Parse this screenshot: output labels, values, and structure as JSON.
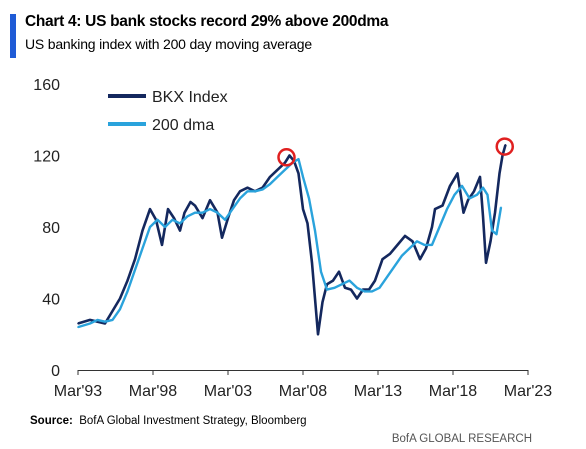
{
  "header": {
    "title": "Chart 4: US bank stocks record 29% above 200dma",
    "subtitle": "US banking index with 200 day moving average"
  },
  "footer": {
    "source_label": "Source:",
    "source_text": "BofA Global Investment Strategy, Bloomberg",
    "brand": "BofA GLOBAL RESEARCH"
  },
  "colors": {
    "accent": "#1f5bd6",
    "bkx": "#14285e",
    "dma": "#2aa3dc",
    "highlight": "#e02020"
  },
  "chart_data": {
    "type": "line",
    "title": "Chart 4: US bank stocks record 29% above 200dma",
    "subtitle": "US banking index with 200 day moving average",
    "xlabel": "",
    "ylabel": "",
    "ylim": [
      0,
      160
    ],
    "xlim": [
      1993.2,
      2023.2
    ],
    "y_ticks": [
      0,
      40,
      80,
      120,
      160
    ],
    "x_ticks": [
      {
        "value": 1993.2,
        "label": "Mar'93"
      },
      {
        "value": 1998.2,
        "label": "Mar'98"
      },
      {
        "value": 2003.2,
        "label": "Mar'03"
      },
      {
        "value": 2008.2,
        "label": "Mar'08"
      },
      {
        "value": 2013.2,
        "label": "Mar'13"
      },
      {
        "value": 2018.2,
        "label": "Mar'18"
      },
      {
        "value": 2023.2,
        "label": "Mar'23"
      }
    ],
    "grid": false,
    "legend_position": "top-left",
    "series": [
      {
        "name": "BKX Index",
        "x": [
          1993.2,
          1994.0,
          1994.5,
          1995.0,
          1995.5,
          1996.0,
          1996.5,
          1997.0,
          1997.5,
          1998.0,
          1998.4,
          1998.8,
          1999.2,
          1999.6,
          2000.0,
          2000.3,
          2000.7,
          2001.0,
          2001.5,
          2002.0,
          2002.5,
          2002.8,
          2003.2,
          2003.6,
          2004.0,
          2004.5,
          2005.0,
          2005.5,
          2006.0,
          2006.5,
          2007.0,
          2007.3,
          2007.6,
          2007.9,
          2008.2,
          2008.5,
          2008.8,
          2009.0,
          2009.2,
          2009.5,
          2009.8,
          2010.2,
          2010.6,
          2011.0,
          2011.4,
          2011.8,
          2012.2,
          2012.6,
          2013.0,
          2013.5,
          2014.0,
          2014.5,
          2015.0,
          2015.5,
          2016.0,
          2016.4,
          2016.8,
          2017.0,
          2017.5,
          2018.0,
          2018.5,
          2018.9,
          2019.2,
          2019.6,
          2020.0,
          2020.2,
          2020.4,
          2020.7,
          2021.0,
          2021.3,
          2021.5,
          2021.7
        ],
        "values": [
          26,
          28,
          27,
          26,
          33,
          40,
          50,
          62,
          78,
          90,
          84,
          70,
          90,
          85,
          78,
          88,
          94,
          92,
          85,
          95,
          88,
          74,
          85,
          95,
          100,
          102,
          100,
          102,
          108,
          112,
          116,
          120,
          117,
          110,
          90,
          82,
          60,
          40,
          20,
          38,
          48,
          50,
          55,
          46,
          45,
          40,
          45,
          45,
          50,
          62,
          65,
          70,
          75,
          72,
          62,
          68,
          80,
          90,
          92,
          103,
          110,
          88,
          95,
          100,
          108,
          86,
          60,
          72,
          88,
          110,
          120,
          126
        ]
      },
      {
        "name": "200 dma",
        "x": [
          1993.2,
          1994.0,
          1994.5,
          1995.0,
          1995.5,
          1996.0,
          1996.5,
          1997.0,
          1997.5,
          1998.0,
          1998.5,
          1999.0,
          1999.5,
          2000.0,
          2000.5,
          2001.0,
          2001.5,
          2002.0,
          2002.5,
          2003.0,
          2003.5,
          2004.0,
          2004.5,
          2005.0,
          2005.5,
          2006.0,
          2006.5,
          2007.0,
          2007.5,
          2007.9,
          2008.2,
          2008.6,
          2009.0,
          2009.4,
          2009.8,
          2010.3,
          2010.8,
          2011.3,
          2011.8,
          2012.3,
          2012.8,
          2013.3,
          2013.8,
          2014.3,
          2014.8,
          2015.3,
          2015.8,
          2016.3,
          2016.8,
          2017.3,
          2017.8,
          2018.3,
          2018.8,
          2019.3,
          2019.8,
          2020.2,
          2020.5,
          2020.8,
          2021.1,
          2021.4
        ],
        "values": [
          24,
          26,
          28,
          27,
          28,
          34,
          44,
          56,
          68,
          80,
          84,
          80,
          84,
          82,
          86,
          88,
          88,
          90,
          88,
          84,
          90,
          96,
          100,
          100,
          101,
          104,
          108,
          112,
          116,
          118,
          108,
          96,
          78,
          55,
          45,
          46,
          48,
          50,
          46,
          44,
          44,
          46,
          52,
          58,
          64,
          68,
          72,
          70,
          70,
          80,
          90,
          98,
          103,
          96,
          98,
          102,
          98,
          78,
          76,
          91
        ]
      }
    ],
    "annotations": [
      {
        "type": "circle",
        "x": 2007.1,
        "y": 119
      },
      {
        "type": "circle",
        "x": 2021.65,
        "y": 125
      }
    ]
  }
}
